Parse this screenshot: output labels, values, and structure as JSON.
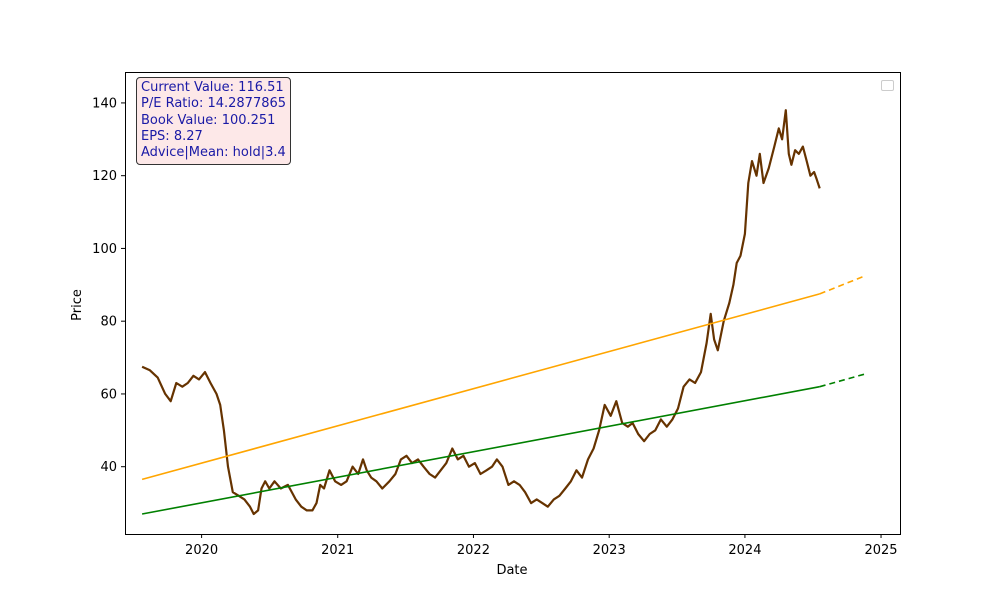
{
  "info": {
    "current_value": "Current Value: 116.51",
    "pe_ratio": "P/E Ratio: 14.2877865",
    "book_value": "Book Value: 100.251",
    "eps": "EPS: 8.27",
    "advice": "Advice|Mean: hold|3.4"
  },
  "chart_data": {
    "type": "line",
    "xlabel": "Date",
    "ylabel": "Price",
    "x_ticks": [
      "2020",
      "2021",
      "2022",
      "2023",
      "2024",
      "2025"
    ],
    "y_ticks": [
      40,
      60,
      80,
      100,
      120,
      140
    ],
    "xlim": [
      "2019-06-09",
      "2025-02-21"
    ],
    "ylim": [
      21.5,
      148.5
    ],
    "grid": false,
    "legend": "top-right (empty)",
    "colors": {
      "price": "#663300",
      "upper_trend": "#ffa500",
      "lower_trend": "#008000",
      "box_text": "#1a1aa6",
      "box_bg": "#fde8e8"
    },
    "series": [
      {
        "role": "price",
        "points": [
          [
            "2019-07-25",
            67.5
          ],
          [
            "2019-08-15",
            66.5
          ],
          [
            "2019-09-05",
            64.5
          ],
          [
            "2019-09-25",
            60
          ],
          [
            "2019-10-10",
            58
          ],
          [
            "2019-10-25",
            63
          ],
          [
            "2019-11-10",
            62
          ],
          [
            "2019-11-25",
            63
          ],
          [
            "2019-12-10",
            65
          ],
          [
            "2019-12-25",
            64
          ],
          [
            "2020-01-10",
            66
          ],
          [
            "2020-01-25",
            63
          ],
          [
            "2020-02-10",
            60
          ],
          [
            "2020-02-20",
            57
          ],
          [
            "2020-03-01",
            50
          ],
          [
            "2020-03-12",
            40
          ],
          [
            "2020-03-25",
            33
          ],
          [
            "2020-04-10",
            32
          ],
          [
            "2020-04-25",
            31
          ],
          [
            "2020-05-10",
            29
          ],
          [
            "2020-05-20",
            27
          ],
          [
            "2020-06-01",
            28
          ],
          [
            "2020-06-10",
            34
          ],
          [
            "2020-06-20",
            36
          ],
          [
            "2020-07-01",
            34
          ],
          [
            "2020-07-15",
            36
          ],
          [
            "2020-08-01",
            34
          ],
          [
            "2020-08-20",
            35
          ],
          [
            "2020-09-10",
            31
          ],
          [
            "2020-09-25",
            29
          ],
          [
            "2020-10-10",
            28
          ],
          [
            "2020-10-25",
            28
          ],
          [
            "2020-11-05",
            30
          ],
          [
            "2020-11-15",
            35
          ],
          [
            "2020-11-25",
            34
          ],
          [
            "2020-12-10",
            39
          ],
          [
            "2020-12-25",
            36
          ],
          [
            "2021-01-10",
            35
          ],
          [
            "2021-01-25",
            36
          ],
          [
            "2021-02-10",
            40
          ],
          [
            "2021-02-25",
            38
          ],
          [
            "2021-03-10",
            42
          ],
          [
            "2021-03-20",
            39
          ],
          [
            "2021-04-01",
            37
          ],
          [
            "2021-04-15",
            36
          ],
          [
            "2021-05-01",
            34
          ],
          [
            "2021-05-20",
            36
          ],
          [
            "2021-06-05",
            38
          ],
          [
            "2021-06-20",
            42
          ],
          [
            "2021-07-05",
            43
          ],
          [
            "2021-07-20",
            41
          ],
          [
            "2021-08-05",
            42
          ],
          [
            "2021-08-20",
            40
          ],
          [
            "2021-09-05",
            38
          ],
          [
            "2021-09-20",
            37
          ],
          [
            "2021-10-05",
            39
          ],
          [
            "2021-10-20",
            41
          ],
          [
            "2021-11-05",
            45
          ],
          [
            "2021-11-20",
            42
          ],
          [
            "2021-12-05",
            43
          ],
          [
            "2021-12-20",
            40
          ],
          [
            "2022-01-05",
            41
          ],
          [
            "2022-01-20",
            38
          ],
          [
            "2022-02-05",
            39
          ],
          [
            "2022-02-20",
            40
          ],
          [
            "2022-03-05",
            42
          ],
          [
            "2022-03-20",
            40
          ],
          [
            "2022-04-05",
            35
          ],
          [
            "2022-04-20",
            36
          ],
          [
            "2022-05-05",
            35
          ],
          [
            "2022-05-20",
            33
          ],
          [
            "2022-06-05",
            30
          ],
          [
            "2022-06-20",
            31
          ],
          [
            "2022-07-05",
            30
          ],
          [
            "2022-07-20",
            29
          ],
          [
            "2022-08-05",
            31
          ],
          [
            "2022-08-20",
            32
          ],
          [
            "2022-09-05",
            34
          ],
          [
            "2022-09-20",
            36
          ],
          [
            "2022-10-05",
            39
          ],
          [
            "2022-10-20",
            37
          ],
          [
            "2022-11-05",
            42
          ],
          [
            "2022-11-20",
            45
          ],
          [
            "2022-12-05",
            50
          ],
          [
            "2022-12-20",
            57
          ],
          [
            "2023-01-05",
            54
          ],
          [
            "2023-01-20",
            58
          ],
          [
            "2023-02-05",
            52
          ],
          [
            "2023-02-20",
            51
          ],
          [
            "2023-03-05",
            52
          ],
          [
            "2023-03-20",
            49
          ],
          [
            "2023-04-05",
            47
          ],
          [
            "2023-04-20",
            49
          ],
          [
            "2023-05-05",
            50
          ],
          [
            "2023-05-20",
            53
          ],
          [
            "2023-06-05",
            51
          ],
          [
            "2023-06-20",
            53
          ],
          [
            "2023-07-05",
            56
          ],
          [
            "2023-07-20",
            62
          ],
          [
            "2023-08-05",
            64
          ],
          [
            "2023-08-20",
            63
          ],
          [
            "2023-09-05",
            66
          ],
          [
            "2023-09-20",
            74
          ],
          [
            "2023-10-01",
            82
          ],
          [
            "2023-10-10",
            75
          ],
          [
            "2023-10-20",
            72
          ],
          [
            "2023-11-05",
            80
          ],
          [
            "2023-11-20",
            85
          ],
          [
            "2023-12-01",
            90
          ],
          [
            "2023-12-10",
            96
          ],
          [
            "2023-12-20",
            98
          ],
          [
            "2024-01-01",
            104
          ],
          [
            "2024-01-10",
            118
          ],
          [
            "2024-01-20",
            124
          ],
          [
            "2024-02-01",
            120
          ],
          [
            "2024-02-10",
            126
          ],
          [
            "2024-02-20",
            118
          ],
          [
            "2024-03-05",
            122
          ],
          [
            "2024-03-20",
            128
          ],
          [
            "2024-04-01",
            133
          ],
          [
            "2024-04-10",
            130
          ],
          [
            "2024-04-20",
            138
          ],
          [
            "2024-04-28",
            126
          ],
          [
            "2024-05-05",
            123
          ],
          [
            "2024-05-15",
            127
          ],
          [
            "2024-05-25",
            126
          ],
          [
            "2024-06-05",
            128
          ],
          [
            "2024-06-15",
            124
          ],
          [
            "2024-06-25",
            120
          ],
          [
            "2024-07-05",
            121
          ],
          [
            "2024-07-12",
            119
          ],
          [
            "2024-07-20",
            116.5
          ]
        ]
      },
      {
        "role": "upper_trend",
        "points": [
          [
            "2019-07-25",
            36.5
          ],
          [
            "2024-07-20",
            87.5
          ]
        ],
        "projection": [
          [
            "2024-07-20",
            87.5
          ],
          [
            "2024-11-20",
            92.5
          ]
        ]
      },
      {
        "role": "lower_trend",
        "points": [
          [
            "2019-07-25",
            27
          ],
          [
            "2024-07-20",
            62
          ]
        ],
        "projection": [
          [
            "2024-07-20",
            62
          ],
          [
            "2024-11-20",
            65.5
          ]
        ]
      }
    ]
  }
}
